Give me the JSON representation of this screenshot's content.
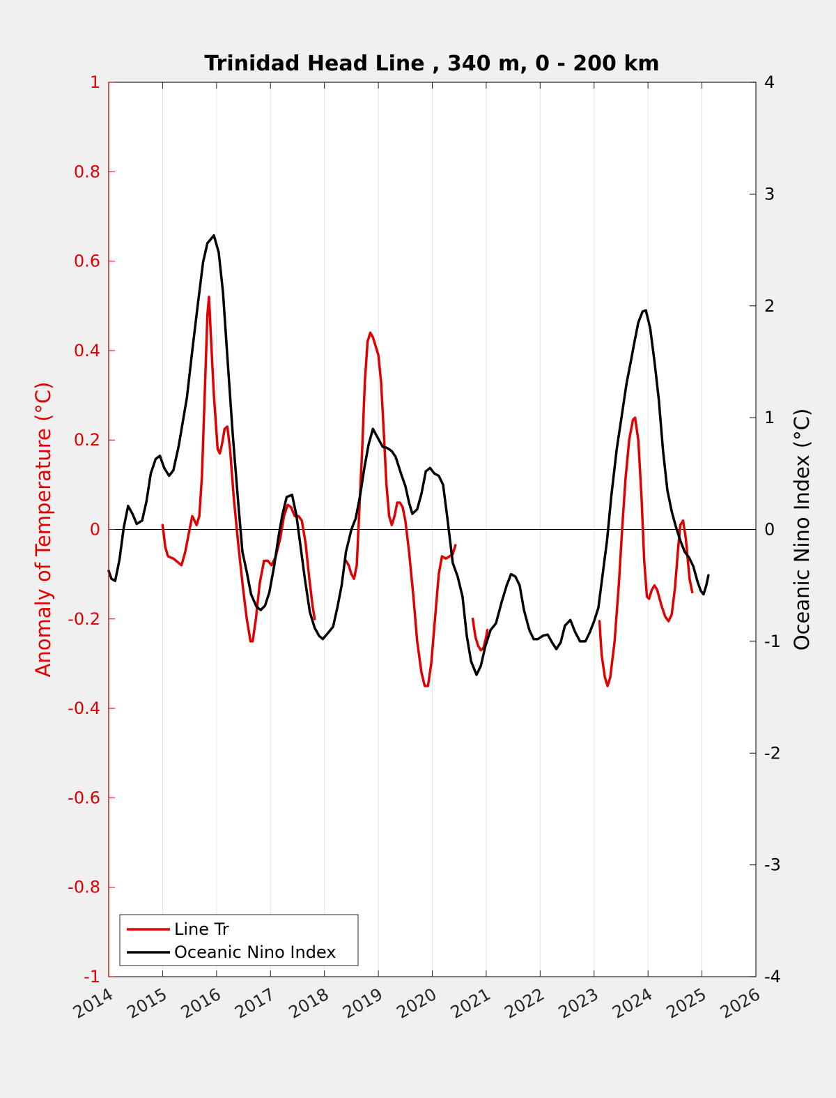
{
  "chart_data": {
    "type": "line",
    "title": "Trinidad Head Line , 340 m, 0 - 200 km",
    "xlim": [
      2014,
      2026
    ],
    "x_ticks": [
      "2014",
      "2015",
      "2016",
      "2017",
      "2018",
      "2019",
      "2020",
      "2021",
      "2022",
      "2023",
      "2024",
      "2025",
      "2026"
    ],
    "y_left": {
      "label": "Anomaly of Temperature (°C)",
      "lim": [
        -1,
        1
      ],
      "ticks": [
        "1",
        "0.8",
        "0.6",
        "0.4",
        "0.2",
        "0",
        "-0.2",
        "-0.4",
        "-0.6",
        "-0.8",
        "-1"
      ],
      "color": "#e00000"
    },
    "y_right": {
      "label": "Oceanic Nino Index (°C)",
      "lim": [
        -4,
        4
      ],
      "ticks": [
        "4",
        "3",
        "2",
        "1",
        "0",
        "-1",
        "-2",
        "-3",
        "-4"
      ],
      "color": "#000000"
    },
    "grid": "vertical",
    "legend_position": "bottom-left",
    "series": [
      {
        "name": "Line Tr",
        "axis": "left",
        "color": "#e00000",
        "segments": [
          [
            [
              2015.0,
              0.01
            ],
            [
              2015.05,
              -0.04
            ],
            [
              2015.1,
              -0.06
            ],
            [
              2015.2,
              -0.065
            ],
            [
              2015.3,
              -0.075
            ],
            [
              2015.35,
              -0.08
            ],
            [
              2015.42,
              -0.05
            ],
            [
              2015.5,
              0.0
            ],
            [
              2015.55,
              0.03
            ],
            [
              2015.63,
              0.01
            ],
            [
              2015.68,
              0.03
            ],
            [
              2015.73,
              0.12
            ],
            [
              2015.78,
              0.3
            ],
            [
              2015.83,
              0.48
            ],
            [
              2015.86,
              0.52
            ],
            [
              2015.9,
              0.42
            ],
            [
              2015.95,
              0.3
            ],
            [
              2016.02,
              0.18
            ],
            [
              2016.06,
              0.17
            ],
            [
              2016.1,
              0.19
            ],
            [
              2016.15,
              0.225
            ],
            [
              2016.2,
              0.23
            ],
            [
              2016.25,
              0.18
            ],
            [
              2016.32,
              0.07
            ],
            [
              2016.4,
              -0.03
            ],
            [
              2016.48,
              -0.12
            ],
            [
              2016.56,
              -0.2
            ],
            [
              2016.63,
              -0.25
            ],
            [
              2016.67,
              -0.25
            ],
            [
              2016.73,
              -0.2
            ],
            [
              2016.8,
              -0.12
            ],
            [
              2016.88,
              -0.07
            ],
            [
              2016.95,
              -0.07
            ],
            [
              2017.02,
              -0.08
            ],
            [
              2017.1,
              -0.06
            ],
            [
              2017.18,
              -0.02
            ],
            [
              2017.25,
              0.03
            ],
            [
              2017.32,
              0.055
            ],
            [
              2017.38,
              0.05
            ],
            [
              2017.45,
              0.03
            ],
            [
              2017.52,
              0.03
            ],
            [
              2017.58,
              0.02
            ],
            [
              2017.65,
              -0.03
            ],
            [
              2017.72,
              -0.11
            ],
            [
              2017.78,
              -0.17
            ],
            [
              2017.82,
              -0.2
            ]
          ],
          [
            [
              2018.4,
              -0.07
            ],
            [
              2018.45,
              -0.08
            ],
            [
              2018.5,
              -0.1
            ],
            [
              2018.55,
              -0.11
            ],
            [
              2018.6,
              -0.08
            ],
            [
              2018.65,
              0.05
            ],
            [
              2018.7,
              0.18
            ],
            [
              2018.75,
              0.33
            ],
            [
              2018.8,
              0.42
            ],
            [
              2018.85,
              0.44
            ],
            [
              2018.9,
              0.43
            ],
            [
              2018.95,
              0.41
            ],
            [
              2019.0,
              0.39
            ],
            [
              2019.05,
              0.33
            ],
            [
              2019.1,
              0.22
            ],
            [
              2019.15,
              0.1
            ],
            [
              2019.2,
              0.03
            ],
            [
              2019.25,
              0.01
            ],
            [
              2019.3,
              0.03
            ],
            [
              2019.35,
              0.06
            ],
            [
              2019.4,
              0.06
            ],
            [
              2019.45,
              0.05
            ],
            [
              2019.5,
              0.02
            ],
            [
              2019.57,
              -0.05
            ],
            [
              2019.65,
              -0.15
            ],
            [
              2019.72,
              -0.25
            ],
            [
              2019.8,
              -0.32
            ],
            [
              2019.86,
              -0.35
            ],
            [
              2019.92,
              -0.35
            ],
            [
              2019.98,
              -0.3
            ],
            [
              2020.05,
              -0.2
            ],
            [
              2020.12,
              -0.1
            ],
            [
              2020.18,
              -0.06
            ],
            [
              2020.25,
              -0.065
            ],
            [
              2020.32,
              -0.06
            ],
            [
              2020.38,
              -0.055
            ],
            [
              2020.43,
              -0.035
            ]
          ],
          [
            [
              2020.75,
              -0.2
            ],
            [
              2020.8,
              -0.24
            ],
            [
              2020.85,
              -0.26
            ],
            [
              2020.9,
              -0.27
            ],
            [
              2020.95,
              -0.265
            ],
            [
              2021.0,
              -0.24
            ],
            [
              2021.02,
              -0.225
            ]
          ],
          [
            [
              2023.1,
              -0.205
            ],
            [
              2023.14,
              -0.28
            ],
            [
              2023.2,
              -0.33
            ],
            [
              2023.25,
              -0.35
            ],
            [
              2023.3,
              -0.33
            ],
            [
              2023.38,
              -0.25
            ],
            [
              2023.46,
              -0.12
            ],
            [
              2023.52,
              0.0
            ],
            [
              2023.58,
              0.11
            ],
            [
              2023.65,
              0.2
            ],
            [
              2023.72,
              0.245
            ],
            [
              2023.76,
              0.25
            ],
            [
              2023.82,
              0.2
            ],
            [
              2023.88,
              0.07
            ],
            [
              2023.93,
              -0.07
            ],
            [
              2023.98,
              -0.15
            ],
            [
              2024.02,
              -0.155
            ],
            [
              2024.07,
              -0.135
            ],
            [
              2024.12,
              -0.125
            ],
            [
              2024.17,
              -0.135
            ],
            [
              2024.25,
              -0.17
            ],
            [
              2024.32,
              -0.195
            ],
            [
              2024.38,
              -0.205
            ],
            [
              2024.44,
              -0.19
            ],
            [
              2024.5,
              -0.13
            ],
            [
              2024.56,
              -0.04
            ],
            [
              2024.6,
              0.01
            ],
            [
              2024.65,
              0.02
            ],
            [
              2024.7,
              -0.02
            ],
            [
              2024.77,
              -0.11
            ],
            [
              2024.82,
              -0.14
            ]
          ]
        ]
      },
      {
        "name": "Oceanic Nino Index",
        "axis": "right",
        "color": "#000000",
        "segments": [
          [
            [
              2014.0,
              -0.37
            ],
            [
              2014.05,
              -0.44
            ],
            [
              2014.12,
              -0.46
            ],
            [
              2014.2,
              -0.27
            ],
            [
              2014.28,
              0.02
            ],
            [
              2014.36,
              0.21
            ],
            [
              2014.44,
              0.14
            ],
            [
              2014.52,
              0.05
            ],
            [
              2014.62,
              0.08
            ],
            [
              2014.7,
              0.25
            ],
            [
              2014.78,
              0.5
            ],
            [
              2014.87,
              0.63
            ],
            [
              2014.95,
              0.66
            ],
            [
              2015.03,
              0.55
            ],
            [
              2015.12,
              0.48
            ],
            [
              2015.2,
              0.53
            ],
            [
              2015.3,
              0.75
            ],
            [
              2015.45,
              1.18
            ],
            [
              2015.55,
              1.6
            ],
            [
              2015.65,
              2.0
            ],
            [
              2015.75,
              2.39
            ],
            [
              2015.83,
              2.56
            ],
            [
              2015.95,
              2.63
            ],
            [
              2016.04,
              2.48
            ],
            [
              2016.12,
              2.12
            ],
            [
              2016.2,
              1.55
            ],
            [
              2016.3,
              0.85
            ],
            [
              2016.4,
              0.25
            ],
            [
              2016.48,
              -0.2
            ],
            [
              2016.56,
              -0.38
            ],
            [
              2016.64,
              -0.58
            ],
            [
              2016.74,
              -0.69
            ],
            [
              2016.82,
              -0.72
            ],
            [
              2016.9,
              -0.68
            ],
            [
              2016.98,
              -0.56
            ],
            [
              2017.07,
              -0.32
            ],
            [
              2017.15,
              -0.06
            ],
            [
              2017.22,
              0.13
            ],
            [
              2017.3,
              0.29
            ],
            [
              2017.4,
              0.31
            ],
            [
              2017.48,
              0.13
            ],
            [
              2017.56,
              -0.16
            ],
            [
              2017.64,
              -0.45
            ],
            [
              2017.73,
              -0.74
            ],
            [
              2017.82,
              -0.88
            ],
            [
              2017.9,
              -0.95
            ],
            [
              2017.97,
              -0.98
            ],
            [
              2018.06,
              -0.93
            ],
            [
              2018.16,
              -0.87
            ],
            [
              2018.24,
              -0.7
            ],
            [
              2018.32,
              -0.5
            ],
            [
              2018.4,
              -0.2
            ],
            [
              2018.5,
              0.0
            ],
            [
              2018.58,
              0.1
            ],
            [
              2018.66,
              0.3
            ],
            [
              2018.74,
              0.55
            ],
            [
              2018.82,
              0.76
            ],
            [
              2018.9,
              0.9
            ],
            [
              2019.0,
              0.81
            ],
            [
              2019.08,
              0.74
            ],
            [
              2019.16,
              0.73
            ],
            [
              2019.25,
              0.7
            ],
            [
              2019.32,
              0.65
            ],
            [
              2019.42,
              0.5
            ],
            [
              2019.5,
              0.39
            ],
            [
              2019.57,
              0.24
            ],
            [
              2019.63,
              0.14
            ],
            [
              2019.72,
              0.18
            ],
            [
              2019.8,
              0.32
            ],
            [
              2019.88,
              0.52
            ],
            [
              2019.96,
              0.55
            ],
            [
              2020.04,
              0.5
            ],
            [
              2020.12,
              0.48
            ],
            [
              2020.2,
              0.4
            ],
            [
              2020.28,
              0.1
            ],
            [
              2020.38,
              -0.3
            ],
            [
              2020.47,
              -0.42
            ],
            [
              2020.56,
              -0.6
            ],
            [
              2020.64,
              -0.95
            ],
            [
              2020.72,
              -1.18
            ],
            [
              2020.82,
              -1.3
            ],
            [
              2020.9,
              -1.22
            ],
            [
              2020.98,
              -1.05
            ],
            [
              2021.08,
              -0.9
            ],
            [
              2021.18,
              -0.84
            ],
            [
              2021.28,
              -0.66
            ],
            [
              2021.38,
              -0.5
            ],
            [
              2021.46,
              -0.4
            ],
            [
              2021.54,
              -0.42
            ],
            [
              2021.62,
              -0.5
            ],
            [
              2021.7,
              -0.72
            ],
            [
              2021.8,
              -0.9
            ],
            [
              2021.88,
              -0.98
            ],
            [
              2021.96,
              -0.98
            ],
            [
              2022.05,
              -0.95
            ],
            [
              2022.14,
              -0.94
            ],
            [
              2022.22,
              -1.01
            ],
            [
              2022.3,
              -1.07
            ],
            [
              2022.38,
              -1.01
            ],
            [
              2022.46,
              -0.86
            ],
            [
              2022.56,
              -0.81
            ],
            [
              2022.65,
              -0.92
            ],
            [
              2022.74,
              -1.0
            ],
            [
              2022.84,
              -1.0
            ],
            [
              2022.92,
              -0.92
            ],
            [
              2023.0,
              -0.82
            ],
            [
              2023.08,
              -0.7
            ],
            [
              2023.16,
              -0.4
            ],
            [
              2023.24,
              -0.1
            ],
            [
              2023.32,
              0.3
            ],
            [
              2023.42,
              0.72
            ],
            [
              2023.52,
              1.04
            ],
            [
              2023.6,
              1.3
            ],
            [
              2023.68,
              1.5
            ],
            [
              2023.75,
              1.68
            ],
            [
              2023.82,
              1.85
            ],
            [
              2023.9,
              1.95
            ],
            [
              2023.96,
              1.96
            ],
            [
              2024.04,
              1.8
            ],
            [
              2024.12,
              1.5
            ],
            [
              2024.2,
              1.16
            ],
            [
              2024.28,
              0.7
            ],
            [
              2024.36,
              0.35
            ],
            [
              2024.44,
              0.16
            ],
            [
              2024.52,
              0.02
            ],
            [
              2024.6,
              -0.1
            ],
            [
              2024.68,
              -0.2
            ],
            [
              2024.76,
              -0.25
            ],
            [
              2024.84,
              -0.33
            ],
            [
              2024.92,
              -0.47
            ],
            [
              2024.98,
              -0.55
            ],
            [
              2025.03,
              -0.58
            ],
            [
              2025.08,
              -0.5
            ],
            [
              2025.12,
              -0.41
            ]
          ]
        ]
      }
    ]
  }
}
